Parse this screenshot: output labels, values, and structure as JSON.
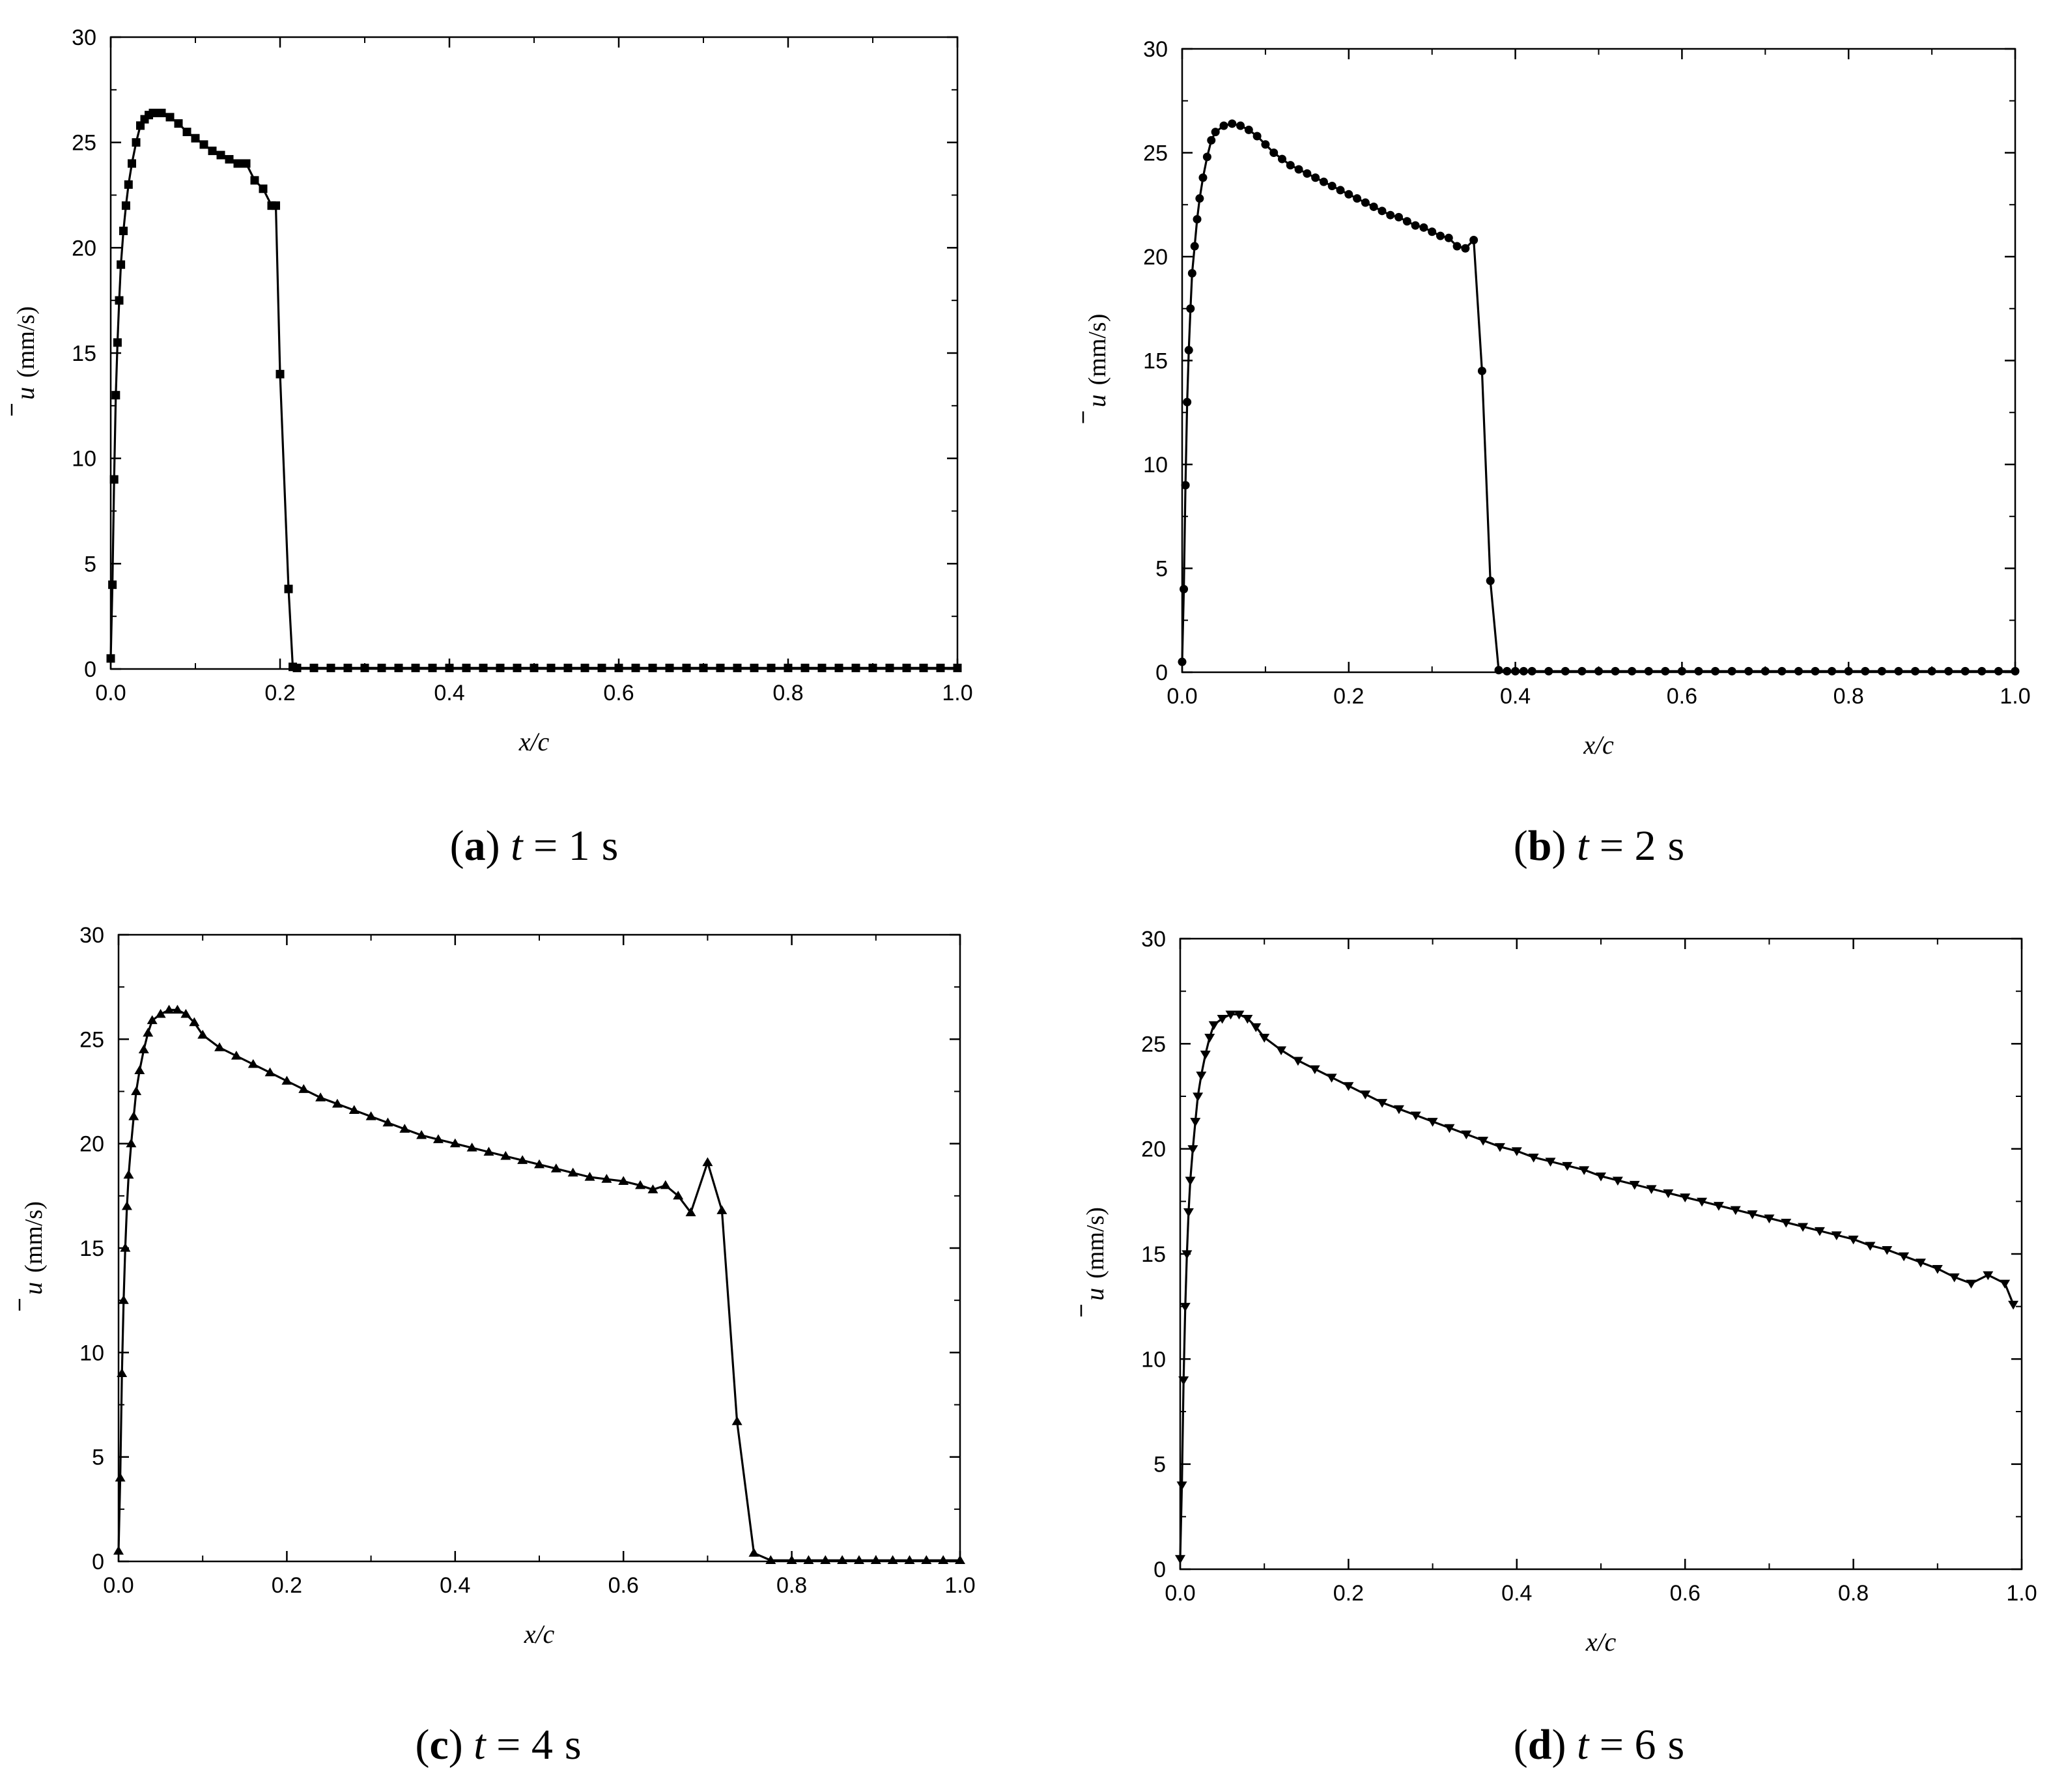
{
  "chart_data": [
    {
      "type": "line",
      "panel": "a",
      "caption": {
        "letter": "a",
        "variable": "t",
        "value": "1",
        "unit": "s"
      },
      "xlabel": "x/c",
      "ylabel": {
        "symbol": "u",
        "unit": "(mm/s)"
      },
      "xlim": [
        0.0,
        1.0
      ],
      "ylim": [
        0,
        30
      ],
      "xticks": [
        "0.0",
        "0.2",
        "0.4",
        "0.6",
        "0.8",
        "1.0"
      ],
      "yticks": [
        "0",
        "5",
        "10",
        "15",
        "20",
        "25",
        "30"
      ],
      "marker": "square",
      "grid": false,
      "x": [
        0.0,
        0.002,
        0.004,
        0.006,
        0.008,
        0.01,
        0.012,
        0.015,
        0.018,
        0.021,
        0.025,
        0.03,
        0.035,
        0.04,
        0.045,
        0.05,
        0.06,
        0.07,
        0.08,
        0.09,
        0.1,
        0.11,
        0.12,
        0.13,
        0.14,
        0.15,
        0.16,
        0.17,
        0.18,
        0.19,
        0.195,
        0.2,
        0.21,
        0.215,
        0.22,
        0.24,
        0.26,
        0.28,
        0.3,
        0.32,
        0.34,
        0.36,
        0.38,
        0.4,
        0.42,
        0.44,
        0.46,
        0.48,
        0.5,
        0.52,
        0.54,
        0.56,
        0.58,
        0.6,
        0.62,
        0.64,
        0.66,
        0.68,
        0.7,
        0.72,
        0.74,
        0.76,
        0.78,
        0.8,
        0.82,
        0.84,
        0.86,
        0.88,
        0.9,
        0.92,
        0.94,
        0.96,
        0.98,
        1.0
      ],
      "y": [
        0.5,
        4.0,
        9.0,
        13.0,
        15.5,
        17.5,
        19.2,
        20.8,
        22.0,
        23.0,
        24.0,
        25.0,
        25.8,
        26.1,
        26.3,
        26.4,
        26.4,
        26.2,
        25.9,
        25.5,
        25.2,
        24.9,
        24.6,
        24.4,
        24.2,
        24.0,
        24.0,
        23.2,
        22.8,
        22.0,
        22.0,
        14.0,
        3.8,
        0.1,
        0.05,
        0.05,
        0.05,
        0.05,
        0.05,
        0.05,
        0.05,
        0.05,
        0.05,
        0.05,
        0.05,
        0.05,
        0.05,
        0.05,
        0.05,
        0.05,
        0.05,
        0.05,
        0.05,
        0.05,
        0.05,
        0.05,
        0.05,
        0.05,
        0.05,
        0.05,
        0.05,
        0.05,
        0.05,
        0.05,
        0.05,
        0.05,
        0.05,
        0.05,
        0.05,
        0.05,
        0.05,
        0.05,
        0.05,
        0.05
      ]
    },
    {
      "type": "line",
      "panel": "b",
      "caption": {
        "letter": "b",
        "variable": "t",
        "value": "2",
        "unit": "s"
      },
      "xlabel": "x/c",
      "ylabel": {
        "symbol": "u",
        "unit": "(mm/s)"
      },
      "xlim": [
        0.0,
        1.0
      ],
      "ylim": [
        0,
        30
      ],
      "xticks": [
        "0.0",
        "0.2",
        "0.4",
        "0.6",
        "0.8",
        "1.0"
      ],
      "yticks": [
        "0",
        "5",
        "10",
        "15",
        "20",
        "25",
        "30"
      ],
      "marker": "circle",
      "grid": false,
      "x": [
        0.0,
        0.002,
        0.004,
        0.006,
        0.008,
        0.01,
        0.012,
        0.015,
        0.018,
        0.021,
        0.025,
        0.03,
        0.035,
        0.04,
        0.05,
        0.06,
        0.07,
        0.08,
        0.09,
        0.1,
        0.11,
        0.12,
        0.13,
        0.14,
        0.15,
        0.16,
        0.17,
        0.18,
        0.19,
        0.2,
        0.21,
        0.22,
        0.23,
        0.24,
        0.25,
        0.26,
        0.27,
        0.28,
        0.29,
        0.3,
        0.31,
        0.32,
        0.33,
        0.34,
        0.35,
        0.36,
        0.37,
        0.38,
        0.39,
        0.4,
        0.41,
        0.42,
        0.44,
        0.46,
        0.48,
        0.5,
        0.52,
        0.54,
        0.56,
        0.58,
        0.6,
        0.62,
        0.64,
        0.66,
        0.68,
        0.7,
        0.72,
        0.74,
        0.76,
        0.78,
        0.8,
        0.82,
        0.84,
        0.86,
        0.88,
        0.9,
        0.92,
        0.94,
        0.96,
        0.98,
        1.0
      ],
      "y": [
        0.5,
        4.0,
        9.0,
        13.0,
        15.5,
        17.5,
        19.2,
        20.5,
        21.8,
        22.8,
        23.8,
        24.8,
        25.6,
        26.0,
        26.3,
        26.4,
        26.3,
        26.1,
        25.8,
        25.4,
        25.0,
        24.7,
        24.4,
        24.2,
        24.0,
        23.8,
        23.6,
        23.4,
        23.2,
        23.0,
        22.8,
        22.6,
        22.4,
        22.2,
        22.0,
        21.9,
        21.7,
        21.5,
        21.4,
        21.2,
        21.0,
        20.9,
        20.5,
        20.4,
        20.8,
        14.5,
        4.4,
        0.1,
        0.05,
        0.05,
        0.05,
        0.05,
        0.05,
        0.05,
        0.05,
        0.05,
        0.05,
        0.05,
        0.05,
        0.05,
        0.05,
        0.05,
        0.05,
        0.05,
        0.05,
        0.05,
        0.05,
        0.05,
        0.05,
        0.05,
        0.05,
        0.05,
        0.05,
        0.05,
        0.05,
        0.05,
        0.05,
        0.05,
        0.05,
        0.05,
        0.05
      ]
    },
    {
      "type": "line",
      "panel": "c",
      "caption": {
        "letter": "c",
        "variable": "t",
        "value": "4",
        "unit": "s"
      },
      "xlabel": "x/c",
      "ylabel": {
        "symbol": "u",
        "unit": "(mm/s)"
      },
      "xlim": [
        0.0,
        1.0
      ],
      "ylim": [
        0,
        30
      ],
      "xticks": [
        "0.0",
        "0.2",
        "0.4",
        "0.6",
        "0.8",
        "1.0"
      ],
      "yticks": [
        "0",
        "5",
        "10",
        "15",
        "20",
        "25",
        "30"
      ],
      "marker": "triangle-up",
      "grid": false,
      "x": [
        0.0,
        0.002,
        0.004,
        0.006,
        0.008,
        0.01,
        0.012,
        0.015,
        0.018,
        0.021,
        0.025,
        0.03,
        0.035,
        0.04,
        0.05,
        0.06,
        0.07,
        0.08,
        0.09,
        0.1,
        0.12,
        0.14,
        0.16,
        0.18,
        0.2,
        0.22,
        0.24,
        0.26,
        0.28,
        0.3,
        0.32,
        0.34,
        0.36,
        0.38,
        0.4,
        0.42,
        0.44,
        0.46,
        0.48,
        0.5,
        0.52,
        0.54,
        0.56,
        0.58,
        0.6,
        0.62,
        0.635,
        0.65,
        0.665,
        0.68,
        0.7,
        0.717,
        0.735,
        0.755,
        0.775,
        0.8,
        0.82,
        0.84,
        0.86,
        0.88,
        0.9,
        0.92,
        0.94,
        0.96,
        0.98,
        1.0
      ],
      "y": [
        0.5,
        4.0,
        9.0,
        12.5,
        15.0,
        17.0,
        18.5,
        20.0,
        21.3,
        22.5,
        23.5,
        24.5,
        25.3,
        25.9,
        26.2,
        26.4,
        26.4,
        26.2,
        25.8,
        25.2,
        24.6,
        24.2,
        23.8,
        23.4,
        23.0,
        22.6,
        22.2,
        21.9,
        21.6,
        21.3,
        21.0,
        20.7,
        20.4,
        20.2,
        20.0,
        19.8,
        19.6,
        19.4,
        19.2,
        19.0,
        18.8,
        18.6,
        18.4,
        18.3,
        18.2,
        18.0,
        17.8,
        18.0,
        17.5,
        16.7,
        19.1,
        16.8,
        6.7,
        0.4,
        0.05,
        0.05,
        0.05,
        0.05,
        0.05,
        0.05,
        0.05,
        0.05,
        0.05,
        0.05,
        0.05,
        0.05
      ]
    },
    {
      "type": "line",
      "panel": "d",
      "caption": {
        "letter": "d",
        "variable": "t",
        "value": "6",
        "unit": "s"
      },
      "xlabel": "x/c",
      "ylabel": {
        "symbol": "u",
        "unit": "(mm/s)"
      },
      "xlim": [
        0.0,
        1.0
      ],
      "ylim": [
        0,
        30
      ],
      "xticks": [
        "0.0",
        "0.2",
        "0.4",
        "0.6",
        "0.8",
        "1.0"
      ],
      "yticks": [
        "0",
        "5",
        "10",
        "15",
        "20",
        "25",
        "30"
      ],
      "marker": "triangle-down",
      "grid": false,
      "x": [
        0.0,
        0.002,
        0.004,
        0.006,
        0.008,
        0.01,
        0.012,
        0.015,
        0.018,
        0.021,
        0.025,
        0.03,
        0.035,
        0.04,
        0.05,
        0.06,
        0.07,
        0.08,
        0.09,
        0.1,
        0.12,
        0.14,
        0.16,
        0.18,
        0.2,
        0.22,
        0.24,
        0.26,
        0.28,
        0.3,
        0.32,
        0.34,
        0.36,
        0.38,
        0.4,
        0.42,
        0.44,
        0.46,
        0.48,
        0.5,
        0.52,
        0.54,
        0.56,
        0.58,
        0.6,
        0.62,
        0.64,
        0.66,
        0.68,
        0.7,
        0.72,
        0.74,
        0.76,
        0.78,
        0.8,
        0.82,
        0.84,
        0.86,
        0.88,
        0.9,
        0.92,
        0.94,
        0.96,
        0.98,
        0.99
      ],
      "y": [
        0.5,
        4.0,
        9.0,
        12.5,
        15.0,
        17.0,
        18.5,
        20.0,
        21.3,
        22.5,
        23.5,
        24.5,
        25.3,
        25.9,
        26.2,
        26.4,
        26.4,
        26.2,
        25.8,
        25.3,
        24.7,
        24.2,
        23.8,
        23.4,
        23.0,
        22.6,
        22.2,
        21.9,
        21.6,
        21.3,
        21.0,
        20.7,
        20.4,
        20.1,
        19.9,
        19.6,
        19.4,
        19.2,
        19.0,
        18.7,
        18.5,
        18.3,
        18.1,
        17.9,
        17.7,
        17.5,
        17.3,
        17.1,
        16.9,
        16.7,
        16.5,
        16.3,
        16.1,
        15.9,
        15.7,
        15.4,
        15.2,
        14.9,
        14.6,
        14.3,
        13.9,
        13.6,
        14.0,
        13.6,
        12.6
      ]
    }
  ]
}
